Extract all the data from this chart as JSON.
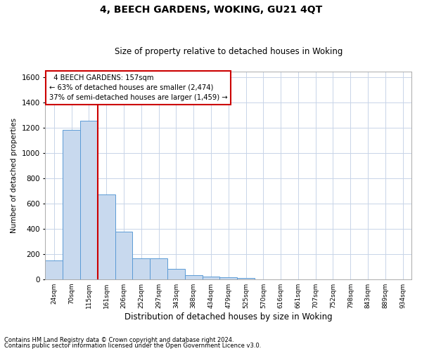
{
  "title": "4, BEECH GARDENS, WOKING, GU21 4QT",
  "subtitle": "Size of property relative to detached houses in Woking",
  "xlabel": "Distribution of detached houses by size in Woking",
  "ylabel": "Number of detached properties",
  "bar_color": "#c8d9ee",
  "bar_edge_color": "#5b9bd5",
  "background_color": "#ffffff",
  "grid_color": "#c8d4e8",
  "categories": [
    "24sqm",
    "70sqm",
    "115sqm",
    "161sqm",
    "206sqm",
    "252sqm",
    "297sqm",
    "343sqm",
    "388sqm",
    "434sqm",
    "479sqm",
    "525sqm",
    "570sqm",
    "616sqm",
    "661sqm",
    "707sqm",
    "752sqm",
    "798sqm",
    "843sqm",
    "889sqm",
    "934sqm"
  ],
  "values": [
    150,
    1185,
    1255,
    670,
    375,
    168,
    168,
    80,
    33,
    22,
    17,
    10,
    0,
    0,
    0,
    0,
    0,
    0,
    0,
    0,
    0
  ],
  "ylim": [
    0,
    1650
  ],
  "yticks": [
    0,
    200,
    400,
    600,
    800,
    1000,
    1200,
    1400,
    1600
  ],
  "property_line_x": 2.5,
  "annotation_text": "  4 BEECH GARDENS: 157sqm\n← 63% of detached houses are smaller (2,474)\n37% of semi-detached houses are larger (1,459) →",
  "annotation_box_color": "#ffffff",
  "annotation_border_color": "#cc0000",
  "footnote1": "Contains HM Land Registry data © Crown copyright and database right 2024.",
  "footnote2": "Contains public sector information licensed under the Open Government Licence v3.0."
}
